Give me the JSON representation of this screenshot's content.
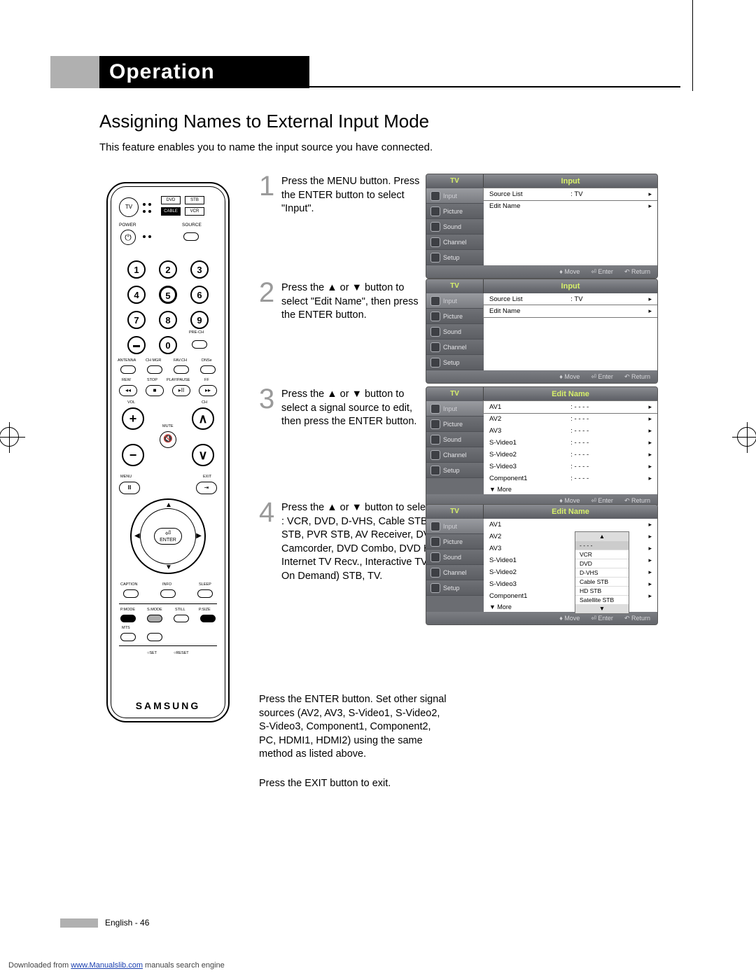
{
  "header": {
    "section": "Operation"
  },
  "subtitle": "Assigning Names to External Input Mode",
  "intro": "This feature enables you to name the input source you have connected.",
  "steps": [
    {
      "num": "1",
      "text": "Press the MENU button. Press the ENTER button to select \"Input\"."
    },
    {
      "num": "2",
      "text": "Press the ▲ or ▼ button to select \"Edit Name\", then press the ENTER button."
    },
    {
      "num": "3",
      "text": "Press the ▲ or ▼ button to select a signal source to edit, then press the ENTER button."
    },
    {
      "num": "4",
      "text": "Press the ▲ or ▼ button to select the external device : VCR, DVD, D-VHS, Cable STB, HD STB, Satellite STB, PVR STB, AV Receiver, DVD Receiver, Game, Camcorder, DVD Combo, DVD HDD Recorder, PC, Internet TV Recv., Interactive TV Recv., VOD (Video On Demand) STB, TV."
    }
  ],
  "after": [
    "Press the ENTER button. Set other signal sources (AV2, AV3, S-Video1, S-Video2, S-Video3, Component1, Component2, PC, HDMI1, HDMI2) using the same method as listed above.",
    "Press the EXIT button to exit."
  ],
  "remote": {
    "brand": "SAMSUNG",
    "modes": [
      "DVD",
      "STB",
      "CABLE",
      "VCR"
    ],
    "tv": "TV",
    "labels": {
      "power": "POWER",
      "source": "SOURCE",
      "prech": "PRE-CH",
      "antenna": "ANTENNA",
      "chmgr": "CH MGR",
      "favch": "FAV.CH",
      "dnse": "DNSe",
      "rew": "REW",
      "stop": "STOP",
      "play": "PLAY/PAUSE",
      "ff": "FF",
      "vol": "VOL",
      "ch": "CH",
      "mute": "MUTE",
      "menu": "MENU",
      "exit": "EXIT",
      "enter": "ENTER",
      "caption": "CAPTION",
      "info": "INFO",
      "sleep": "SLEEP",
      "pmode": "P.MODE",
      "smode": "S.MODE",
      "still": "STILL",
      "psize": "P.SIZE",
      "mts": "MTS",
      "set": "SET",
      "reset": "RESET"
    },
    "numbers": [
      "1",
      "2",
      "3",
      "4",
      "5",
      "6",
      "7",
      "8",
      "9",
      "0"
    ]
  },
  "osd": {
    "side_items": [
      "Input",
      "Picture",
      "Sound",
      "Channel",
      "Setup"
    ],
    "foot": {
      "move": "Move",
      "enter": "Enter",
      "return": "Return"
    },
    "screens": [
      {
        "tv": "TV",
        "title": "Input",
        "rows": [
          {
            "k": "Source List",
            "v": ": TV",
            "hl": true
          },
          {
            "k": "Edit Name",
            "v": ""
          }
        ]
      },
      {
        "tv": "TV",
        "title": "Input",
        "rows": [
          {
            "k": "Source List",
            "v": ": TV"
          },
          {
            "k": "Edit Name",
            "v": "",
            "hl": true
          }
        ]
      },
      {
        "tv": "TV",
        "title": "Edit Name",
        "rows": [
          {
            "k": "AV1",
            "v": ": - - - -",
            "hl": true
          },
          {
            "k": "AV2",
            "v": ": - - - -"
          },
          {
            "k": "AV3",
            "v": ": - - - -"
          },
          {
            "k": "S-Video1",
            "v": ": - - - -"
          },
          {
            "k": "S-Video2",
            "v": ": - - - -"
          },
          {
            "k": "S-Video3",
            "v": ": - - - -"
          },
          {
            "k": "Component1",
            "v": ": - - - -"
          }
        ],
        "more": "▼ More"
      },
      {
        "tv": "TV",
        "title": "Edit Name",
        "rows": [
          {
            "k": "AV1",
            "v": ""
          },
          {
            "k": "AV2",
            "v": ""
          },
          {
            "k": "AV3",
            "v": ""
          },
          {
            "k": "S-Video1",
            "v": ""
          },
          {
            "k": "S-Video2",
            "v": ""
          },
          {
            "k": "S-Video3",
            "v": ""
          },
          {
            "k": "Component1",
            "v": ""
          }
        ],
        "more": "▼ More",
        "dropdown": [
          "- - - -",
          "VCR",
          "DVD",
          "D-VHS",
          "Cable STB",
          "HD STB",
          "Satellite STB"
        ]
      }
    ]
  },
  "footer": {
    "lang": "English - 46"
  },
  "download": {
    "pre": "Downloaded from ",
    "link": "www.Manualslib.com",
    "post": " manuals search engine"
  },
  "colors": {
    "grey": "#b0b0b0",
    "osd_bg": "#6b6d72",
    "accent": "#d7f06a"
  }
}
